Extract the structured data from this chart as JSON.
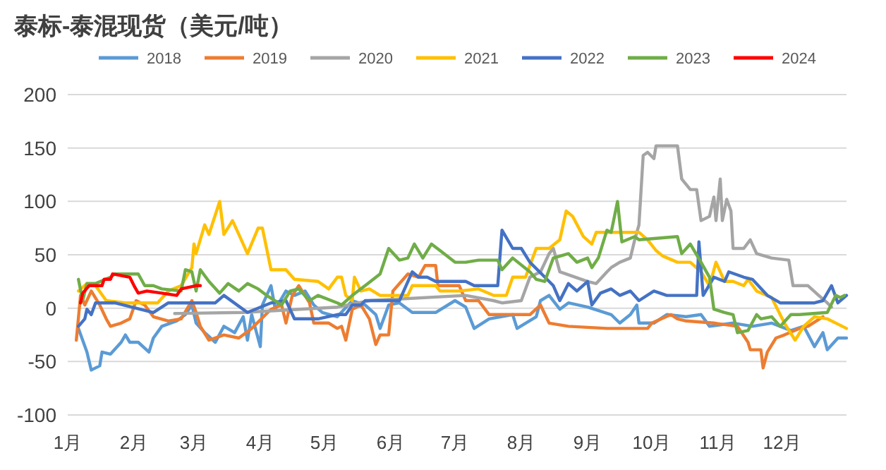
{
  "chart_data": {
    "type": "line",
    "title": "泰标-泰混现货（美元/吨）",
    "xlim": [
      "--01-01",
      "--12-31"
    ],
    "xticks": [
      {
        "value": "--01-01",
        "label": "1月"
      },
      {
        "value": "--02-01",
        "label": "2月"
      },
      {
        "value": "--03-01",
        "label": "3月"
      },
      {
        "value": "--04-01",
        "label": "4月"
      },
      {
        "value": "--05-01",
        "label": "5月"
      },
      {
        "value": "--06-01",
        "label": "6月"
      },
      {
        "value": "--07-01",
        "label": "7月"
      },
      {
        "value": "--08-01",
        "label": "8月"
      },
      {
        "value": "--09-01",
        "label": "9月"
      },
      {
        "value": "--10-01",
        "label": "10月"
      },
      {
        "value": "--11-01",
        "label": "11月"
      },
      {
        "value": "--12-01",
        "label": "12月"
      }
    ],
    "ylim": [
      -100,
      200
    ],
    "yticks": [
      -100,
      -50,
      0,
      50,
      100,
      150,
      200
    ],
    "grid": "y",
    "legend": "top",
    "series": [
      {
        "name": "2018",
        "color": "#5b9bd5",
        "x": [
          "--01-06",
          "--01-10",
          "--01-12",
          "--01-16",
          "--01-17",
          "--01-21",
          "--01-26",
          "--01-28",
          "--01-30",
          "--02-03",
          "--02-08",
          "--02-10",
          "--02-14",
          "--02-21",
          "--02-25",
          "--02-28",
          "--03-02",
          "--03-06",
          "--03-11",
          "--03-15",
          "--03-20",
          "--03-24",
          "--03-26",
          "--03-28",
          "--04-01",
          "--04-02",
          "--04-06",
          "--04-08",
          "--04-13",
          "--04-17",
          "--04-22",
          "--04-26",
          "--04-30",
          "--05-07",
          "--05-14",
          "--05-20",
          "--05-25",
          "--05-27",
          "--05-31",
          "--06-05",
          "--06-11",
          "--06-22",
          "--07-01",
          "--07-06",
          "--07-10",
          "--07-17",
          "--07-28",
          "--07-30",
          "--08-08",
          "--08-10",
          "--08-14",
          "--08-19",
          "--08-23",
          "--09-01",
          "--09-12",
          "--09-16",
          "--09-21",
          "--09-24",
          "--09-25",
          "--10-02",
          "--10-08",
          "--10-17",
          "--10-24",
          "--10-28",
          "--11-08",
          "--11-17",
          "--11-26",
          "--12-05",
          "--12-11",
          "--12-16",
          "--12-20",
          "--12-22",
          "--12-27",
          "--12-31"
        ],
        "values": [
          -19,
          -41,
          -58,
          -54,
          -41,
          -43,
          -32,
          -25,
          -32,
          -32,
          -41,
          -28,
          -17,
          -12,
          -6,
          3,
          -14,
          -23,
          -32,
          -17,
          -23,
          -8,
          -30,
          -6,
          -36,
          3,
          21,
          -1,
          16,
          12,
          16,
          3,
          -4,
          -8,
          7,
          3,
          -6,
          -19,
          3,
          5,
          -4,
          -4,
          7,
          1,
          -19,
          -10,
          -6,
          -19,
          -8,
          7,
          12,
          -1,
          5,
          1,
          -6,
          -14,
          -6,
          3,
          -14,
          -14,
          -6,
          -8,
          -6,
          -17,
          -14,
          -17,
          -14,
          -21,
          -17,
          -36,
          -23,
          -39,
          -28,
          -28
        ]
      },
      {
        "name": "2019",
        "color": "#ed7d31",
        "x": [
          "--01-05",
          "--01-07",
          "--01-09",
          "--01-12",
          "--01-16",
          "--01-19",
          "--01-21",
          "--01-26",
          "--01-30",
          "--02-02",
          "--02-06",
          "--02-10",
          "--02-17",
          "--02-23",
          "--02-28",
          "--03-02",
          "--03-04",
          "--03-08",
          "--03-15",
          "--03-22",
          "--03-28",
          "--04-06",
          "--04-11",
          "--04-13",
          "--04-16",
          "--04-19",
          "--04-24",
          "--04-26",
          "--05-03",
          "--05-07",
          "--05-09",
          "--05-11",
          "--05-14",
          "--05-18",
          "--05-22",
          "--05-25",
          "--05-27",
          "--05-31",
          "--06-02",
          "--06-09",
          "--06-14",
          "--06-17",
          "--06-22",
          "--06-23",
          "--07-03",
          "--07-06",
          "--07-12",
          "--07-17",
          "--08-05",
          "--08-10",
          "--08-14",
          "--08-23",
          "--09-10",
          "--09-29",
          "--10-01",
          "--10-10",
          "--10-13",
          "--10-17",
          "--10-30",
          "--11-10",
          "--11-15",
          "--11-16",
          "--11-21",
          "--11-22",
          "--11-24",
          "--11-28",
          "--12-02",
          "--12-09",
          "--12-13",
          "--12-20"
        ],
        "values": [
          -30,
          12,
          3,
          16,
          3,
          -10,
          -17,
          -14,
          -10,
          7,
          3,
          -8,
          -12,
          -10,
          7,
          -4,
          -17,
          -30,
          -25,
          -28,
          -19,
          -1,
          3,
          -14,
          12,
          21,
          5,
          -14,
          -14,
          -19,
          -17,
          -30,
          -1,
          3,
          -10,
          -34,
          -25,
          -25,
          16,
          32,
          29,
          40,
          40,
          21,
          21,
          7,
          7,
          -6,
          -6,
          3,
          -14,
          -17,
          -19,
          -19,
          -14,
          -6,
          -10,
          -12,
          -14,
          -17,
          -32,
          -39,
          -39,
          -56,
          -41,
          -28,
          -25,
          -19,
          -17,
          -8
        ]
      },
      {
        "name": "2020",
        "color": "#a5a5a5",
        "x": [
          "--02-20",
          "--03-24",
          "--05-07",
          "--05-22",
          "--07-06",
          "--07-19",
          "--07-23",
          "--08-01",
          "--08-05",
          "--08-10",
          "--08-14",
          "--08-16",
          "--08-19",
          "--09-01",
          "--09-05",
          "--09-10",
          "--09-12",
          "--09-16",
          "--09-21",
          "--09-23",
          "--09-25",
          "--09-27",
          "--09-29",
          "--10-02",
          "--10-03",
          "--10-13",
          "--10-15",
          "--10-19",
          "--10-22",
          "--10-24",
          "--10-28",
          "--10-30",
          "--10-31",
          "--11-02",
          "--11-03",
          "--11-05",
          "--11-07",
          "--11-08",
          "--11-13",
          "--11-16",
          "--11-19",
          "--11-26",
          "--12-04",
          "--12-06",
          "--12-13",
          "--12-18",
          "--12-22",
          "--12-24"
        ],
        "values": [
          -5,
          -4,
          1,
          7,
          12,
          7,
          5,
          7,
          29,
          34,
          51,
          56,
          34,
          25,
          23,
          34,
          38,
          43,
          47,
          64,
          78,
          143,
          146,
          140,
          152,
          152,
          121,
          111,
          111,
          82,
          86,
          104,
          82,
          121,
          82,
          102,
          91,
          56,
          56,
          64,
          51,
          47,
          45,
          21,
          21,
          12,
          5,
          1
        ]
      },
      {
        "name": "2021",
        "color": "#ffc000",
        "x": [
          "--01-06",
          "--01-10",
          "--01-14",
          "--01-19",
          "--01-28",
          "--02-12",
          "--02-17",
          "--02-23",
          "--02-28",
          "--03-01",
          "--03-02",
          "--03-06",
          "--03-08",
          "--03-13",
          "--03-15",
          "--03-19",
          "--03-22",
          "--03-26",
          "--03-31",
          "--04-02",
          "--04-06",
          "--04-13",
          "--04-17",
          "--04-28",
          "--05-03",
          "--05-07",
          "--05-09",
          "--05-11",
          "--05-14",
          "--05-15",
          "--05-18",
          "--05-22",
          "--05-27",
          "--06-09",
          "--06-11",
          "--06-22",
          "--06-24",
          "--07-03",
          "--07-12",
          "--07-19",
          "--07-25",
          "--07-28",
          "--08-03",
          "--08-08",
          "--08-14",
          "--08-19",
          "--08-22",
          "--08-25",
          "--08-30",
          "--09-03",
          "--09-05",
          "--09-21",
          "--09-25",
          "--09-29",
          "--10-03",
          "--10-06",
          "--10-13",
          "--10-19",
          "--10-24",
          "--10-28",
          "--10-31",
          "--11-04",
          "--11-08",
          "--11-13",
          "--11-15",
          "--11-19",
          "--11-26",
          "--12-02",
          "--12-07",
          "--12-11",
          "--12-16",
          "--12-22",
          "--12-29",
          "--12-31"
        ],
        "values": [
          16,
          23,
          21,
          7,
          5,
          5,
          16,
          21,
          38,
          60,
          51,
          78,
          69,
          100,
          69,
          82,
          69,
          51,
          75,
          75,
          36,
          36,
          27,
          25,
          18,
          29,
          29,
          12,
          7,
          29,
          16,
          18,
          12,
          12,
          21,
          21,
          16,
          16,
          18,
          12,
          12,
          29,
          29,
          56,
          56,
          64,
          91,
          86,
          67,
          60,
          71,
          71,
          71,
          64,
          54,
          49,
          43,
          43,
          34,
          21,
          43,
          25,
          25,
          21,
          27,
          16,
          10,
          -14,
          -30,
          -17,
          -8,
          -10,
          -17,
          -19
        ]
      },
      {
        "name": "2022",
        "color": "#4472c4",
        "x": [
          "--01-06",
          "--01-09",
          "--01-10",
          "--01-12",
          "--01-14",
          "--01-23",
          "--02-10",
          "--02-17",
          "--03-11",
          "--03-15",
          "--03-26",
          "--04-06",
          "--04-13",
          "--04-17",
          "--04-28",
          "--05-07",
          "--05-11",
          "--05-14",
          "--05-18",
          "--05-20",
          "--06-05",
          "--06-11",
          "--06-14",
          "--06-18",
          "--06-22",
          "--07-06",
          "--07-10",
          "--07-21",
          "--07-23",
          "--07-28",
          "--08-01",
          "--08-05",
          "--08-12",
          "--08-16",
          "--08-19",
          "--08-23",
          "--08-27",
          "--09-01",
          "--09-03",
          "--09-07",
          "--09-12",
          "--09-16",
          "--09-21",
          "--09-25",
          "--10-02",
          "--10-08",
          "--10-17",
          "--10-22",
          "--10-23",
          "--10-25",
          "--10-30",
          "--11-04",
          "--11-06",
          "--11-13",
          "--11-17",
          "--11-24",
          "--11-30",
          "--12-16",
          "--12-20",
          "--12-24",
          "--12-27",
          "--12-31"
        ],
        "values": [
          -17,
          -10,
          -1,
          -6,
          5,
          5,
          -4,
          5,
          5,
          12,
          -4,
          5,
          7,
          -10,
          -10,
          -6,
          -6,
          3,
          3,
          7,
          7,
          34,
          29,
          29,
          25,
          25,
          21,
          21,
          73,
          56,
          56,
          43,
          29,
          21,
          7,
          23,
          16,
          25,
          3,
          14,
          18,
          12,
          16,
          7,
          16,
          12,
          12,
          12,
          62,
          12,
          29,
          25,
          34,
          29,
          27,
          12,
          5,
          5,
          7,
          21,
          5,
          12
        ]
      },
      {
        "name": "2023",
        "color": "#70ad47",
        "x": [
          "--01-06",
          "--01-08",
          "--01-10",
          "--01-14",
          "--01-21",
          "--01-23",
          "--02-03",
          "--02-06",
          "--02-10",
          "--02-14",
          "--02-23",
          "--02-25",
          "--02-28",
          "--03-02",
          "--03-04",
          "--03-08",
          "--03-13",
          "--03-17",
          "--03-22",
          "--03-26",
          "--03-31",
          "--04-04",
          "--04-11",
          "--04-15",
          "--04-19",
          "--04-24",
          "--04-28",
          "--05-07",
          "--05-09",
          "--05-14",
          "--05-20",
          "--05-27",
          "--05-31",
          "--06-05",
          "--06-09",
          "--06-12",
          "--06-16",
          "--06-20",
          "--06-24",
          "--07-01",
          "--07-06",
          "--07-12",
          "--07-21",
          "--07-23",
          "--07-28",
          "--08-05",
          "--08-08",
          "--08-12",
          "--08-16",
          "--08-23",
          "--08-27",
          "--09-01",
          "--09-03",
          "--09-06",
          "--09-10",
          "--09-12",
          "--09-15",
          "--09-17",
          "--09-23",
          "--09-25",
          "--10-13",
          "--10-15",
          "--10-19",
          "--10-24",
          "--10-28",
          "--10-30",
          "--11-04",
          "--11-08",
          "--11-10",
          "--11-15",
          "--11-19",
          "--11-21",
          "--11-26",
          "--11-30",
          "--12-05",
          "--12-09",
          "--12-22",
          "--12-26",
          "--12-28",
          "--12-30"
        ],
        "values": [
          27,
          7,
          23,
          23,
          29,
          32,
          32,
          21,
          21,
          18,
          16,
          36,
          34,
          16,
          36,
          25,
          14,
          23,
          16,
          23,
          18,
          12,
          3,
          16,
          18,
          7,
          12,
          5,
          3,
          12,
          21,
          32,
          56,
          45,
          47,
          60,
          47,
          60,
          54,
          43,
          43,
          45,
          45,
          36,
          47,
          34,
          27,
          25,
          47,
          51,
          43,
          47,
          38,
          47,
          73,
          71,
          100,
          62,
          67,
          64,
          67,
          51,
          60,
          43,
          29,
          -1,
          -4,
          -6,
          -23,
          -21,
          -6,
          -10,
          -8,
          -17,
          -6,
          -6,
          -4,
          12,
          10,
          12
        ]
      },
      {
        "name": "2024",
        "color": "#ff0000",
        "x": [
          "--01-07",
          "--01-08",
          "--01-11",
          "--01-17",
          "--01-18",
          "--01-21",
          "--01-22",
          "--01-30",
          "--02-01",
          "--02-03",
          "--02-07",
          "--02-14",
          "--02-21",
          "--02-23",
          "--03-02",
          "--03-04"
        ],
        "values": [
          5,
          14,
          21,
          21,
          27,
          27,
          32,
          29,
          21,
          14,
          16,
          14,
          12,
          18,
          21,
          21
        ]
      }
    ]
  }
}
